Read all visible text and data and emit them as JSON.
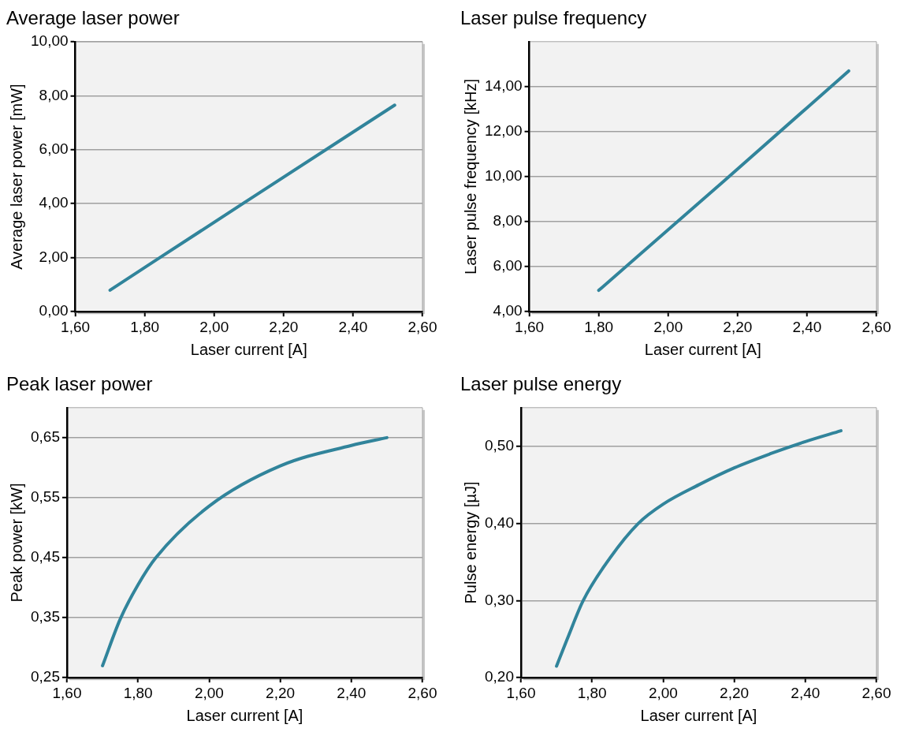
{
  "chart_data": [
    {
      "type": "line",
      "title": "Average laser power",
      "xlabel": "Laser current [A]",
      "ylabel": "Average laser power [mW]",
      "xlim": [
        1.6,
        2.6
      ],
      "xticks": [
        {
          "value": 1.6,
          "label": "1,60"
        },
        {
          "value": 1.8,
          "label": "1,80"
        },
        {
          "value": 2.0,
          "label": "2,00"
        },
        {
          "value": 2.2,
          "label": "2,20"
        },
        {
          "value": 2.4,
          "label": "2,40"
        },
        {
          "value": 2.6,
          "label": "2,60"
        }
      ],
      "ylim": [
        0,
        10
      ],
      "yticks": [
        {
          "value": 0,
          "label": "0,00"
        },
        {
          "value": 2,
          "label": "2,00"
        },
        {
          "value": 4,
          "label": "4,00"
        },
        {
          "value": 6,
          "label": "6,00"
        },
        {
          "value": 8,
          "label": "8,00"
        },
        {
          "value": 10,
          "label": "10,00"
        }
      ],
      "grid": "y",
      "legend": false,
      "marker": "none",
      "line_style": "solid",
      "series": [
        {
          "color": "#31849b",
          "x": [
            1.7,
            2.1,
            2.52
          ],
          "values": [
            0.8,
            4.15,
            7.65
          ]
        }
      ]
    },
    {
      "type": "line",
      "title": "Laser pulse frequency",
      "xlabel": "Laser current [A]",
      "ylabel": "Laser pulse frequency [kHz]",
      "xlim": [
        1.6,
        2.6
      ],
      "xticks": [
        {
          "value": 1.6,
          "label": "1,60"
        },
        {
          "value": 1.8,
          "label": "1,80"
        },
        {
          "value": 2.0,
          "label": "2,00"
        },
        {
          "value": 2.2,
          "label": "2,20"
        },
        {
          "value": 2.4,
          "label": "2,40"
        },
        {
          "value": 2.6,
          "label": "2,60"
        }
      ],
      "ylim": [
        4,
        16
      ],
      "yticks": [
        {
          "value": 4,
          "label": "4,00"
        },
        {
          "value": 6,
          "label": "6,00"
        },
        {
          "value": 8,
          "label": "8,00"
        },
        {
          "value": 10,
          "label": "10,00"
        },
        {
          "value": 12,
          "label": "12,00"
        },
        {
          "value": 14,
          "label": "14,00"
        }
      ],
      "grid": "y",
      "legend": false,
      "marker": "none",
      "line_style": "solid",
      "series": [
        {
          "color": "#31849b",
          "x": [
            1.8,
            2.16,
            2.52
          ],
          "values": [
            4.95,
            9.8,
            14.7
          ]
        }
      ]
    },
    {
      "type": "line",
      "title": "Peak laser power",
      "xlabel": "Laser current [A]",
      "ylabel": "Peak power [kW]",
      "xlim": [
        1.6,
        2.6
      ],
      "xticks": [
        {
          "value": 1.6,
          "label": "1,60"
        },
        {
          "value": 1.8,
          "label": "1,80"
        },
        {
          "value": 2.0,
          "label": "2,00"
        },
        {
          "value": 2.2,
          "label": "2,20"
        },
        {
          "value": 2.4,
          "label": "2,40"
        },
        {
          "value": 2.6,
          "label": "2,60"
        }
      ],
      "ylim": [
        0.25,
        0.7
      ],
      "yticks": [
        {
          "value": 0.25,
          "label": "0,25"
        },
        {
          "value": 0.35,
          "label": "0,35"
        },
        {
          "value": 0.45,
          "label": "0,45"
        },
        {
          "value": 0.55,
          "label": "0,55"
        },
        {
          "value": 0.65,
          "label": "0,65"
        }
      ],
      "grid": "y",
      "legend": false,
      "marker": "none",
      "line_style": "solid",
      "series": [
        {
          "color": "#31849b",
          "x": [
            1.7,
            1.75,
            1.8,
            1.85,
            2.0,
            2.2,
            2.4,
            2.5
          ],
          "values": [
            0.27,
            0.348,
            0.405,
            0.45,
            0.536,
            0.603,
            0.637,
            0.65
          ]
        }
      ]
    },
    {
      "type": "line",
      "title": "Laser pulse energy",
      "xlabel": "Laser current [A]",
      "ylabel": "Pulse energy [µJ]",
      "xlim": [
        1.6,
        2.6
      ],
      "xticks": [
        {
          "value": 1.6,
          "label": "1,60"
        },
        {
          "value": 1.8,
          "label": "1,80"
        },
        {
          "value": 2.0,
          "label": "2,00"
        },
        {
          "value": 2.2,
          "label": "2,20"
        },
        {
          "value": 2.4,
          "label": "2,40"
        },
        {
          "value": 2.6,
          "label": "2,60"
        }
      ],
      "ylim": [
        0.2,
        0.55
      ],
      "yticks": [
        {
          "value": 0.2,
          "label": "0,20"
        },
        {
          "value": 0.3,
          "label": "0,30"
        },
        {
          "value": 0.4,
          "label": "0,40"
        },
        {
          "value": 0.5,
          "label": "0,50"
        }
      ],
      "grid": "y",
      "legend": false,
      "marker": "none",
      "line_style": "solid",
      "series": [
        {
          "color": "#31849b",
          "x": [
            1.7,
            1.73,
            1.775,
            1.85,
            1.93,
            2.0,
            2.1,
            2.2,
            2.3,
            2.4,
            2.5
          ],
          "values": [
            0.215,
            0.25,
            0.3,
            0.355,
            0.4,
            0.425,
            0.45,
            0.472,
            0.49,
            0.506,
            0.52
          ]
        }
      ]
    }
  ]
}
